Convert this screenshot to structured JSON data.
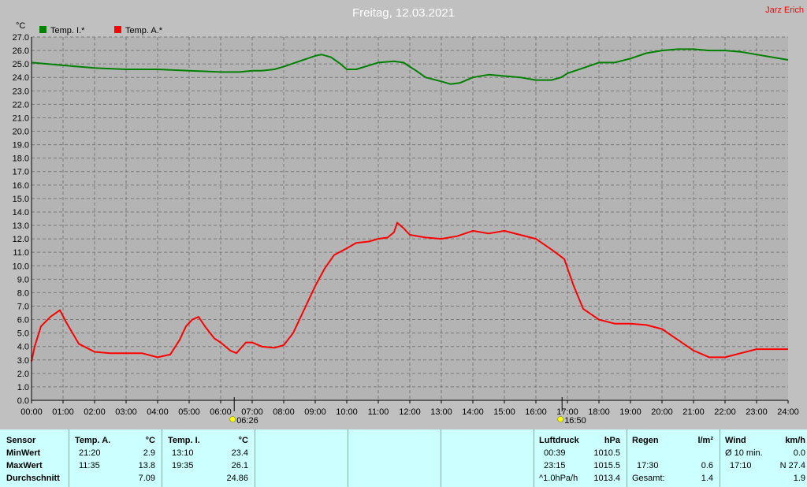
{
  "title": "Freitag, 12.03.2021",
  "author": "Jarz Erich",
  "colors": {
    "background": "#c0c0c0",
    "plot": "#b4b4b4",
    "inside": "#008000",
    "outside": "#ff0000",
    "panel": "#ccffff",
    "title": "#ffffff",
    "author": "#ff0000"
  },
  "chart_data": {
    "type": "line",
    "ylabel": "°C",
    "ylim": [
      0,
      27
    ],
    "ytick_step": 1,
    "xlim": [
      0,
      24
    ],
    "x_ticks": [
      "00:00",
      "01:00",
      "02:00",
      "03:00",
      "04:00",
      "05:00",
      "06:00",
      "07:00",
      "08:00",
      "09:00",
      "10:00",
      "11:00",
      "12:00",
      "13:00",
      "14:00",
      "15:00",
      "16:00",
      "17:00",
      "18:00",
      "19:00",
      "20:00",
      "21:00",
      "22:00",
      "23:00",
      "24:00"
    ],
    "grid": true,
    "legend_position": "top-left",
    "sunrise": {
      "label": "06:26",
      "hour": 6.43
    },
    "sunset": {
      "label": "16:50",
      "hour": 16.83
    },
    "series": [
      {
        "name": "Temp. I.*",
        "color": "#008000",
        "x": [
          0,
          0.5,
          1,
          1.5,
          2,
          3,
          4,
          5,
          6,
          6.6,
          7,
          7.3,
          7.7,
          8,
          8.5,
          9,
          9.2,
          9.5,
          9.8,
          10,
          10.3,
          11,
          11.5,
          11.8,
          12,
          12.2,
          12.5,
          13,
          13.3,
          13.6,
          14,
          14.5,
          15,
          15.5,
          16,
          16.5,
          16.8,
          17,
          17.5,
          18,
          18.5,
          19,
          19.5,
          20,
          20.5,
          21,
          21.5,
          22,
          22.5,
          23,
          23.5,
          24
        ],
        "y": [
          25.1,
          25.0,
          24.9,
          24.8,
          24.7,
          24.6,
          24.6,
          24.5,
          24.4,
          24.4,
          24.5,
          24.5,
          24.6,
          24.8,
          25.2,
          25.6,
          25.7,
          25.5,
          25.0,
          24.6,
          24.6,
          25.1,
          25.2,
          25.1,
          24.8,
          24.5,
          24.0,
          23.7,
          23.5,
          23.6,
          24.0,
          24.2,
          24.1,
          24.0,
          23.8,
          23.8,
          24.0,
          24.3,
          24.7,
          25.1,
          25.1,
          25.4,
          25.8,
          26.0,
          26.1,
          26.1,
          26.0,
          26.0,
          25.9,
          25.7,
          25.5,
          25.3
        ]
      },
      {
        "name": "Temp. A.*",
        "color": "#ff0000",
        "x": [
          0,
          0.1,
          0.3,
          0.6,
          0.9,
          1.1,
          1.5,
          2,
          2.5,
          3,
          3.5,
          4,
          4.4,
          4.7,
          4.9,
          5.1,
          5.3,
          5.5,
          5.8,
          6,
          6.3,
          6.5,
          6.8,
          7,
          7.3,
          7.7,
          8,
          8.3,
          8.6,
          9,
          9.3,
          9.6,
          10,
          10.3,
          10.7,
          11,
          11.3,
          11.5,
          11.6,
          11.8,
          12,
          12.5,
          13,
          13.5,
          14,
          14.5,
          15,
          15.5,
          16,
          16.5,
          16.9,
          17.2,
          17.5,
          18,
          18.5,
          19,
          19.5,
          20,
          20.5,
          21,
          21.3,
          21.5,
          22,
          22.5,
          23,
          23.5,
          24
        ],
        "y": [
          2.9,
          4.0,
          5.5,
          6.2,
          6.7,
          5.8,
          4.2,
          3.6,
          3.5,
          3.5,
          3.5,
          3.2,
          3.4,
          4.5,
          5.5,
          6.0,
          6.2,
          5.5,
          4.6,
          4.3,
          3.7,
          3.5,
          4.3,
          4.3,
          4.0,
          3.9,
          4.1,
          5.0,
          6.5,
          8.5,
          9.8,
          10.8,
          11.3,
          11.7,
          11.8,
          12.0,
          12.1,
          12.5,
          13.2,
          12.8,
          12.3,
          12.1,
          12.0,
          12.2,
          12.6,
          12.4,
          12.6,
          12.3,
          12.0,
          11.2,
          10.5,
          8.5,
          6.8,
          6.0,
          5.7,
          5.7,
          5.6,
          5.3,
          4.5,
          3.7,
          3.4,
          3.2,
          3.2,
          3.5,
          3.8,
          3.8,
          3.8
        ]
      }
    ]
  },
  "panel": {
    "sensor": {
      "header": "Sensor",
      "rows": [
        "MinWert",
        "MaxWert",
        "Durchschnitt"
      ]
    },
    "temp_a": {
      "header": "Temp. A.",
      "unit": "°C",
      "min_time": "21:20",
      "min_val": "2.9",
      "max_time": "11:35",
      "max_val": "13.8",
      "avg": "7.09"
    },
    "temp_i": {
      "header": "Temp. I.",
      "unit": "°C",
      "min_time": "13:10",
      "min_val": "23.4",
      "max_time": "19:35",
      "max_val": "26.1",
      "avg": "24.86"
    },
    "luftdruck": {
      "header": "Luftdruck",
      "unit": "hPa",
      "min_time": "00:39",
      "min_val": "1010.5",
      "max_time": "23:15",
      "max_val": "1015.5",
      "trend_label": "^1.0hPa/h",
      "trend_val": "1013.4"
    },
    "regen": {
      "header": "Regen",
      "unit": "l/m²",
      "time": "17:30",
      "val": "0.6",
      "total_label": "Gesamt:",
      "total_val": "1.4"
    },
    "wind": {
      "header": "Wind",
      "unit": "km/h",
      "avg_label": "Ø 10 min.",
      "avg_val": "0.0",
      "max_time": "17:10",
      "max_val": "N 27.4",
      "last_val": "1.9"
    }
  }
}
